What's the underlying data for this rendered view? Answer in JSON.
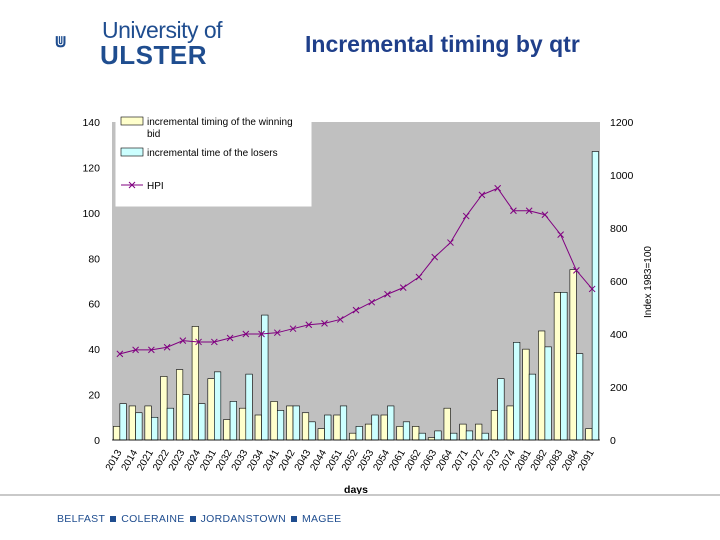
{
  "logo": {
    "line1": "University of",
    "line2": "ULSTER"
  },
  "title": "Incremental timing by qtr",
  "footer": {
    "campuses": [
      "BELFAST",
      "COLERAINE",
      "JORDANSTOWN",
      "MAGEE"
    ]
  },
  "colors": {
    "brand": "#1f4d8f",
    "winning": "#ffffcc",
    "losers": "#ccffff",
    "hpi": "#800080"
  },
  "chart_data": {
    "type": "bar",
    "title": "",
    "xlabel": "days",
    "ylabel": "",
    "y2label": "Index 1983=100",
    "ylim": [
      0,
      140
    ],
    "y2lim": [
      0,
      1200
    ],
    "yticks": [
      "0",
      "20",
      "40",
      "60",
      "80",
      "100",
      "120",
      "140"
    ],
    "y2ticks": [
      "0",
      "200",
      "400",
      "600",
      "800",
      "1000",
      "1200"
    ],
    "categories": [
      "2013",
      "2014",
      "2021",
      "2022",
      "2023",
      "2024",
      "2031",
      "2032",
      "2033",
      "2034",
      "2041",
      "2042",
      "2043",
      "2044",
      "2051",
      "2052",
      "2053",
      "2054",
      "2061",
      "2062",
      "2063",
      "2064",
      "2071",
      "2072",
      "2073",
      "2074",
      "2081",
      "2082",
      "2083",
      "2084",
      "2091"
    ],
    "series": [
      {
        "name": "incremental timing of the winning bid",
        "type": "bar",
        "values": [
          6,
          15,
          15,
          28,
          31,
          50,
          27,
          9,
          14,
          11,
          17,
          15,
          12,
          5,
          11,
          3,
          7,
          11,
          6,
          6,
          1,
          14,
          7,
          7,
          13,
          15,
          40,
          48,
          65,
          75,
          5
        ]
      },
      {
        "name": "incremental time of the losers",
        "type": "bar",
        "values": [
          16,
          12,
          10,
          14,
          20,
          16,
          30,
          17,
          29,
          55,
          13,
          15,
          8,
          11,
          15,
          6,
          11,
          15,
          8,
          3,
          4,
          3,
          4,
          3,
          27,
          43,
          29,
          41,
          65,
          38,
          127
        ]
      },
      {
        "name": "HPI",
        "type": "line",
        "axis": "right",
        "values": [
          325,
          340,
          340,
          350,
          375,
          370,
          370,
          385,
          400,
          400,
          405,
          420,
          435,
          440,
          455,
          490,
          520,
          550,
          575,
          615,
          690,
          745,
          845,
          925,
          950,
          865,
          865,
          850,
          775,
          640,
          570
        ]
      }
    ],
    "legend": "top-left"
  }
}
